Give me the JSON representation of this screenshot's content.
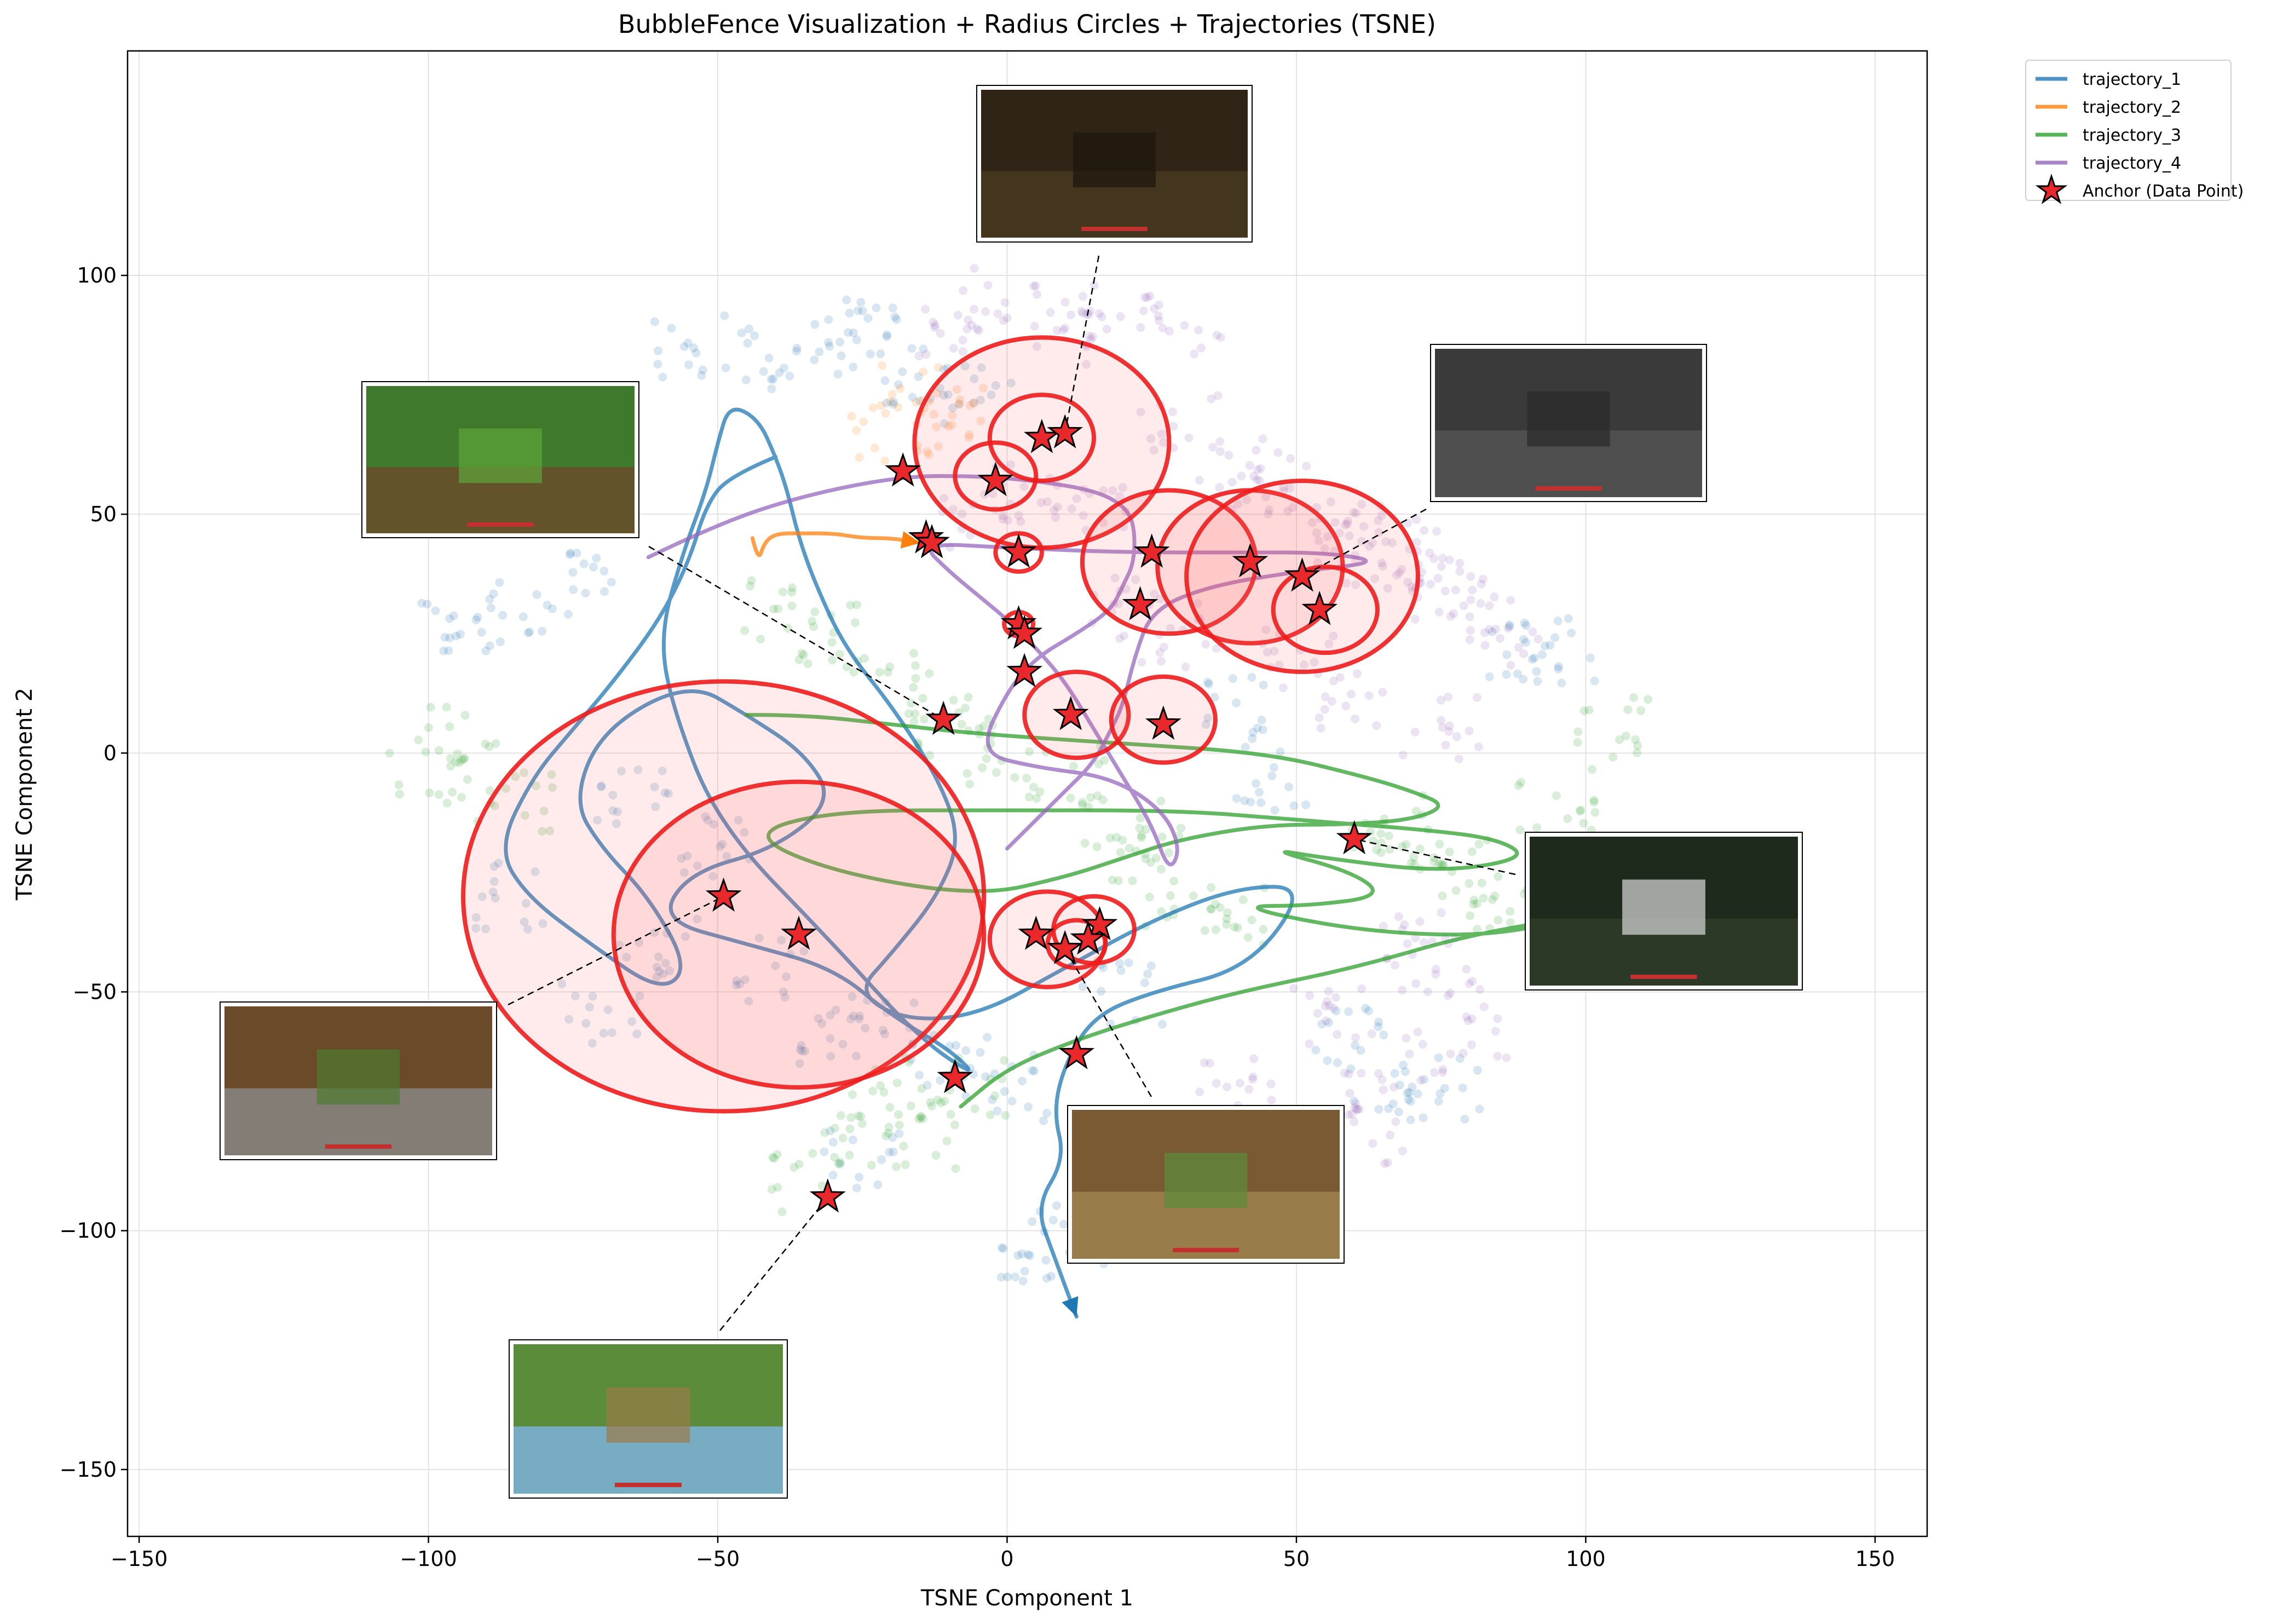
{
  "chart_data": {
    "type": "scatter",
    "title": "BubbleFence Visualization + Radius Circles + Trajectories (TSNE)",
    "xlabel": "TSNE Component 1",
    "ylabel": "TSNE Component 2",
    "xlim": [
      -152,
      159
    ],
    "ylim": [
      -164,
      147
    ],
    "xticks": [
      -150,
      -100,
      -50,
      0,
      50,
      100,
      150
    ],
    "yticks": [
      -150,
      -100,
      -50,
      0,
      50,
      100
    ],
    "xtick_labels": [
      "−150",
      "−100",
      "−50",
      "0",
      "50",
      "100",
      "150"
    ],
    "ytick_labels": [
      "−150",
      "−100",
      "−50",
      "0",
      "50",
      "100"
    ],
    "grid": true,
    "legend_position": "outside-top-right",
    "legend": [
      "trajectory_1",
      "trajectory_2",
      "trajectory_3",
      "trajectory_4",
      "Anchor (Data Point)"
    ],
    "colors": {
      "trajectory_1": "#1f77b4",
      "trajectory_2": "#ff7f0e",
      "trajectory_3": "#2ca02c",
      "trajectory_4": "#9467bd",
      "anchor": "#e8282b",
      "circle": "#ee1c1c"
    },
    "clusters": [
      {
        "series": "trajectory_1",
        "points": [
          [
            -55,
            85
          ],
          [
            -40,
            82
          ],
          [
            -30,
            86
          ],
          [
            -22,
            88
          ],
          [
            -15,
            80
          ],
          [
            -5,
            75
          ],
          [
            -75,
            35
          ],
          [
            -85,
            30
          ],
          [
            -95,
            28
          ],
          [
            -65,
            -10
          ],
          [
            -50,
            -20
          ],
          [
            -60,
            -40
          ],
          [
            -40,
            -45
          ],
          [
            -30,
            -60
          ],
          [
            -20,
            -55
          ],
          [
            -70,
            -55
          ],
          [
            -85,
            -30
          ],
          [
            -10,
            -65
          ],
          [
            0,
            -70
          ],
          [
            5,
            -105
          ],
          [
            10,
            -100
          ],
          [
            40,
            10
          ],
          [
            45,
            -5
          ],
          [
            60,
            -60
          ],
          [
            65,
            -70
          ],
          [
            75,
            -70
          ],
          [
            90,
            20
          ],
          [
            95,
            22
          ],
          [
            -25,
            -85
          ],
          [
            20,
            -50
          ]
        ]
      },
      {
        "series": "trajectory_2",
        "points": [
          [
            -15,
            75
          ],
          [
            -10,
            70
          ],
          [
            -20,
            68
          ]
        ]
      },
      {
        "series": "trajectory_3",
        "points": [
          [
            -100,
            -5
          ],
          [
            -95,
            5
          ],
          [
            -40,
            30
          ],
          [
            -30,
            25
          ],
          [
            -20,
            15
          ],
          [
            -10,
            5
          ],
          [
            0,
            0
          ],
          [
            10,
            -5
          ],
          [
            20,
            -15
          ],
          [
            25,
            -20
          ],
          [
            30,
            -30
          ],
          [
            40,
            -35
          ],
          [
            65,
            -15
          ],
          [
            70,
            -20
          ],
          [
            80,
            -25
          ],
          [
            85,
            -30
          ],
          [
            95,
            -10
          ],
          [
            100,
            -25
          ],
          [
            105,
            5
          ],
          [
            -25,
            -80
          ],
          [
            -20,
            -70
          ],
          [
            -35,
            -90
          ],
          [
            -15,
            -80
          ],
          [
            -5,
            -70
          ],
          [
            -85,
            -10
          ]
        ]
      },
      {
        "series": "trajectory_4",
        "points": [
          [
            -10,
            90
          ],
          [
            0,
            95
          ],
          [
            10,
            88
          ],
          [
            20,
            92
          ],
          [
            30,
            90
          ],
          [
            30,
            70
          ],
          [
            40,
            60
          ],
          [
            45,
            55
          ],
          [
            55,
            48
          ],
          [
            60,
            45
          ],
          [
            65,
            42
          ],
          [
            70,
            40
          ],
          [
            75,
            35
          ],
          [
            80,
            30
          ],
          [
            85,
            25
          ],
          [
            50,
            20
          ],
          [
            60,
            10
          ],
          [
            75,
            5
          ],
          [
            30,
            25
          ],
          [
            20,
            30
          ],
          [
            70,
            -40
          ],
          [
            75,
            -45
          ],
          [
            55,
            -55
          ],
          [
            40,
            -70
          ],
          [
            65,
            -80
          ],
          [
            80,
            -60
          ],
          [
            65,
            -65
          ],
          [
            -5,
            50
          ],
          [
            5,
            55
          ],
          [
            15,
            50
          ]
        ]
      }
    ],
    "anchors": [
      [
        6,
        66
      ],
      [
        10,
        67
      ],
      [
        -2,
        57
      ],
      [
        -18,
        59
      ],
      [
        -14,
        45
      ],
      [
        -13,
        44
      ],
      [
        2,
        42
      ],
      [
        25,
        42
      ],
      [
        42,
        40
      ],
      [
        51,
        37
      ],
      [
        54,
        30
      ],
      [
        23,
        31
      ],
      [
        2,
        27
      ],
      [
        3,
        25
      ],
      [
        3,
        17
      ],
      [
        -11,
        7
      ],
      [
        11,
        8
      ],
      [
        27,
        6
      ],
      [
        60,
        -18
      ],
      [
        -49,
        -30
      ],
      [
        -36,
        -38
      ],
      [
        5,
        -38
      ],
      [
        16,
        -36
      ],
      [
        14,
        -39
      ],
      [
        10,
        -41
      ],
      [
        12,
        -63
      ],
      [
        -9,
        -68
      ],
      [
        -31,
        -93
      ]
    ],
    "circles": [
      {
        "cx": 6,
        "cy": 65,
        "r": 22,
        "fill": true
      },
      {
        "cx": 6,
        "cy": 66,
        "r": 9,
        "fill": false
      },
      {
        "cx": -2,
        "cy": 58,
        "r": 7,
        "fill": false
      },
      {
        "cx": 2,
        "cy": 42,
        "r": 4,
        "fill": false
      },
      {
        "cx": 28,
        "cy": 40,
        "r": 15,
        "fill": true
      },
      {
        "cx": 42,
        "cy": 39,
        "r": 16,
        "fill": true
      },
      {
        "cx": 51,
        "cy": 37,
        "r": 20,
        "fill": true
      },
      {
        "cx": 55,
        "cy": 30,
        "r": 9,
        "fill": false
      },
      {
        "cx": 2,
        "cy": 27,
        "r": 2.5,
        "fill": false
      },
      {
        "cx": 12,
        "cy": 8,
        "r": 9,
        "fill": true
      },
      {
        "cx": 27,
        "cy": 7,
        "r": 9,
        "fill": true
      },
      {
        "cx": -49,
        "cy": -30,
        "r": 45,
        "fill": true
      },
      {
        "cx": -36,
        "cy": -38,
        "r": 32,
        "fill": true
      },
      {
        "cx": 7,
        "cy": -39,
        "r": 10,
        "fill": true
      },
      {
        "cx": 15,
        "cy": -37,
        "r": 7,
        "fill": false
      },
      {
        "cx": 12,
        "cy": -40,
        "r": 5,
        "fill": false
      }
    ],
    "trajectories": [
      {
        "name": "trajectory_1",
        "arrow": true,
        "points": [
          [
            -40,
            62
          ],
          [
            -48,
            58
          ],
          [
            -52,
            52
          ],
          [
            -55,
            40
          ],
          [
            -60,
            28
          ],
          [
            -68,
            15
          ],
          [
            -75,
            5
          ],
          [
            -82,
            -5
          ],
          [
            -88,
            -20
          ],
          [
            -83,
            -30
          ],
          [
            -72,
            -40
          ],
          [
            -60,
            -50
          ],
          [
            -55,
            -45
          ],
          [
            -62,
            -30
          ],
          [
            -70,
            -20
          ],
          [
            -75,
            -10
          ],
          [
            -70,
            5
          ],
          [
            -55,
            15
          ],
          [
            -45,
            8
          ],
          [
            -35,
            0
          ],
          [
            -30,
            -10
          ],
          [
            -40,
            -20
          ],
          [
            -55,
            -25
          ],
          [
            -60,
            -35
          ],
          [
            -45,
            -40
          ],
          [
            -30,
            -45
          ],
          [
            -20,
            -55
          ],
          [
            -10,
            -62
          ],
          [
            -5,
            -68
          ],
          [
            -15,
            -60
          ],
          [
            -30,
            -40
          ],
          [
            -50,
            -15
          ],
          [
            -58,
            10
          ],
          [
            -60,
            25
          ],
          [
            -56,
            42
          ],
          [
            -52,
            55
          ],
          [
            -50,
            65
          ],
          [
            -48,
            73
          ],
          [
            -43,
            70
          ],
          [
            -40,
            62
          ],
          [
            -38,
            55
          ],
          [
            -36,
            45
          ],
          [
            -33,
            35
          ],
          [
            -28,
            22
          ],
          [
            -20,
            10
          ],
          [
            -12,
            -5
          ],
          [
            -8,
            -18
          ],
          [
            -12,
            -30
          ],
          [
            -20,
            -42
          ],
          [
            -26,
            -50
          ],
          [
            -18,
            -56
          ],
          [
            -5,
            -55
          ],
          [
            10,
            -45
          ],
          [
            25,
            -35
          ],
          [
            40,
            -28
          ],
          [
            52,
            -28
          ],
          [
            42,
            -45
          ],
          [
            25,
            -50
          ],
          [
            15,
            -55
          ],
          [
            10,
            -65
          ],
          [
            8,
            -75
          ],
          [
            10,
            -85
          ],
          [
            5,
            -95
          ],
          [
            8,
            -105
          ],
          [
            12,
            -118
          ]
        ]
      },
      {
        "name": "trajectory_2",
        "arrow": true,
        "points": [
          [
            -44,
            45
          ],
          [
            -43,
            40
          ],
          [
            -42,
            44
          ],
          [
            -40,
            46
          ],
          [
            -35,
            46
          ],
          [
            -30,
            46
          ],
          [
            -25,
            45
          ],
          [
            -20,
            45
          ],
          [
            -15,
            44
          ]
        ]
      },
      {
        "name": "trajectory_3",
        "arrow": false,
        "points": [
          [
            -45,
            8
          ],
          [
            -35,
            8
          ],
          [
            -20,
            6
          ],
          [
            -5,
            4
          ],
          [
            20,
            2
          ],
          [
            45,
            0
          ],
          [
            62,
            -5
          ],
          [
            70,
            -8
          ],
          [
            76,
            -11
          ],
          [
            70,
            -14
          ],
          [
            58,
            -15
          ],
          [
            45,
            -15
          ],
          [
            30,
            -18
          ],
          [
            20,
            -22
          ],
          [
            10,
            -26
          ],
          [
            -5,
            -30
          ],
          [
            -30,
            -25
          ],
          [
            -45,
            -17
          ],
          [
            -30,
            -12
          ],
          [
            0,
            -12
          ],
          [
            30,
            -12
          ],
          [
            50,
            -14
          ],
          [
            72,
            -16
          ],
          [
            85,
            -18
          ],
          [
            90,
            -22
          ],
          [
            75,
            -25
          ],
          [
            55,
            -22
          ],
          [
            45,
            -20
          ],
          [
            60,
            -25
          ],
          [
            65,
            -30
          ],
          [
            52,
            -32
          ],
          [
            40,
            -32
          ],
          [
            55,
            -36
          ],
          [
            70,
            -38
          ],
          [
            85,
            -38
          ],
          [
            100,
            -34
          ],
          [
            80,
            -38
          ],
          [
            60,
            -45
          ],
          [
            40,
            -50
          ],
          [
            25,
            -55
          ],
          [
            12,
            -60
          ],
          [
            0,
            -66
          ],
          [
            -8,
            -74
          ]
        ]
      },
      {
        "name": "trajectory_4",
        "arrow": false,
        "points": [
          [
            -62,
            41
          ],
          [
            -50,
            48
          ],
          [
            -35,
            54
          ],
          [
            -18,
            58
          ],
          [
            -5,
            58
          ],
          [
            5,
            57
          ],
          [
            15,
            55
          ],
          [
            20,
            52
          ],
          [
            22,
            48
          ],
          [
            22,
            40
          ],
          [
            20,
            35
          ],
          [
            18,
            30
          ],
          [
            12,
            25
          ],
          [
            5,
            20
          ],
          [
            0,
            13
          ],
          [
            -5,
            0
          ],
          [
            5,
            -3
          ],
          [
            18,
            -5
          ],
          [
            27,
            -12
          ],
          [
            30,
            -20
          ],
          [
            28,
            -25
          ],
          [
            25,
            -15
          ],
          [
            20,
            -5
          ],
          [
            15,
            5
          ],
          [
            10,
            15
          ],
          [
            5,
            22
          ],
          [
            0,
            28
          ],
          [
            -5,
            33
          ],
          [
            -10,
            38
          ],
          [
            -15,
            44
          ],
          [
            0,
            43
          ],
          [
            20,
            42
          ],
          [
            40,
            42
          ],
          [
            55,
            42
          ],
          [
            65,
            40
          ],
          [
            50,
            38
          ],
          [
            35,
            35
          ],
          [
            25,
            30
          ],
          [
            22,
            20
          ],
          [
            20,
            10
          ],
          [
            18,
            5
          ],
          [
            15,
            -2
          ],
          [
            10,
            -8
          ],
          [
            5,
            -14
          ],
          [
            0,
            -20
          ]
        ]
      }
    ]
  }
}
